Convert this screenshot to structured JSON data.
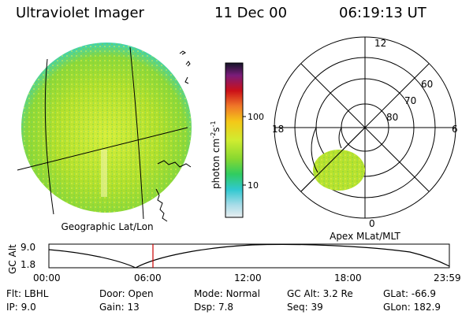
{
  "header": {
    "instrument": "Ultraviolet Imager",
    "date": "11 Dec 00",
    "time": "06:19:13 UT"
  },
  "left_panel": {
    "caption": "Geographic Lat/Lon"
  },
  "right_panel": {
    "caption": "Apex MLat/MLT",
    "mlt_labels": [
      "12",
      "18",
      "6",
      "0"
    ],
    "lat_labels": [
      "60",
      "70",
      "80"
    ]
  },
  "colorbar": {
    "label": "photon cm",
    "label_sup1": "-2",
    "label_mid": "s",
    "label_sup2": "-1",
    "ticks": [
      "100",
      "10"
    ],
    "scale": "log"
  },
  "orbit_plot": {
    "ylabel": "GC Alt",
    "yticks": [
      "9.0",
      "1.8"
    ],
    "xticks": [
      "00:00",
      "06:00",
      "12:00",
      "18:00",
      "23:59"
    ],
    "current_marker": "06:19",
    "line_color": "#cc0000"
  },
  "status": {
    "flt_label": "Flt:",
    "flt_value": "LBHL",
    "ip_label": "IP:",
    "ip_value": "9.0",
    "door_label": "Door:",
    "door_value": "Open",
    "gain_label": "Gain:",
    "gain_value": "13",
    "mode_label": "Mode:",
    "mode_value": "Normal",
    "dsp_label": "Dsp:",
    "dsp_value": "7.8",
    "gcalt_label": "GC Alt:",
    "gcalt_value": "3.2 Re",
    "seq_label": "Seq:",
    "seq_value": "39",
    "glat_label": "GLat:",
    "glat_value": "-66.9",
    "glon_label": "GLon:",
    "glon_value": "182.9"
  }
}
